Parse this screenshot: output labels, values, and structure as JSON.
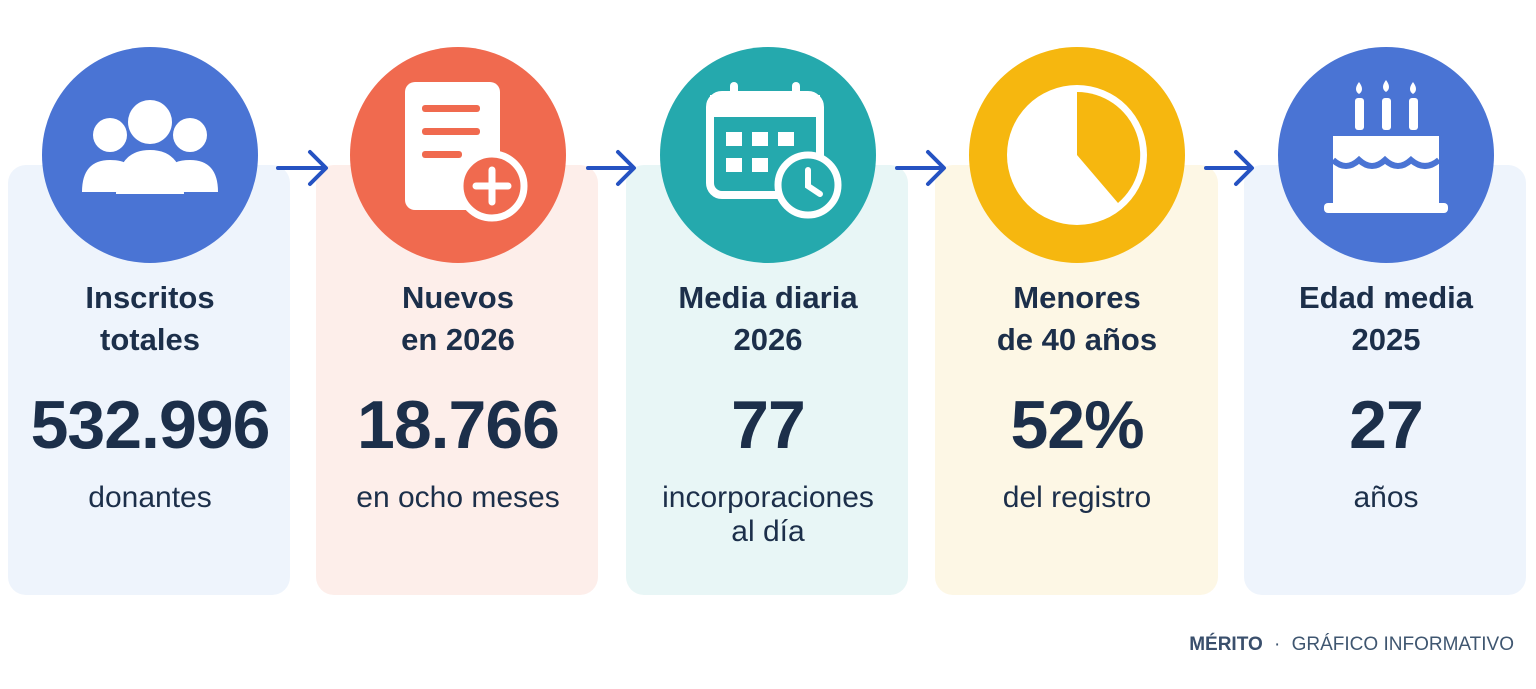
{
  "cards": [
    {
      "title": [
        "Inscritos",
        "totales"
      ],
      "value": "532.996",
      "caption": [
        "donantes"
      ]
    },
    {
      "title": [
        "Nuevos",
        "en 2026"
      ],
      "value": "18.766",
      "caption": [
        "en ocho meses"
      ]
    },
    {
      "title": [
        "Media diaria",
        "2026"
      ],
      "value": "77",
      "caption": [
        "incorporaciones",
        "al día"
      ]
    },
    {
      "title": [
        "Menores",
        "de 40 años"
      ],
      "value": "52%",
      "caption": [
        "del registro"
      ]
    },
    {
      "title": [
        "Edad media",
        "2025"
      ],
      "value": "27",
      "caption": [
        "años"
      ]
    }
  ],
  "footer": {
    "brand": "MÉRITO",
    "separator": "·",
    "label": "GRÁFICO INFORMATIVO"
  }
}
